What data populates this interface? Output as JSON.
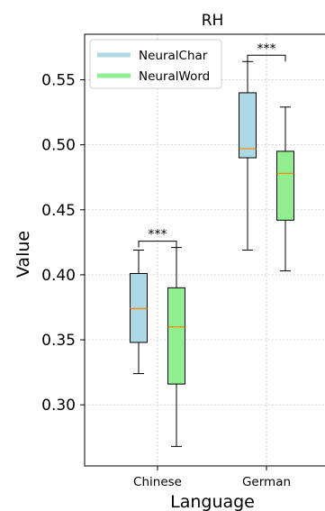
{
  "chart_data": {
    "type": "box",
    "title": "RH",
    "xlabel": "Language",
    "ylabel": "Value",
    "ylim": [
      0.253,
      0.585
    ],
    "yticks": [
      "0.30",
      "0.35",
      "0.40",
      "0.45",
      "0.50",
      "0.55"
    ],
    "ytick_values": [
      0.3,
      0.35,
      0.4,
      0.45,
      0.5,
      0.55
    ],
    "grid": true,
    "legend_position": "top-left",
    "categories": [
      "Chinese",
      "German"
    ],
    "series": [
      {
        "name": "NeuralChar",
        "color": "#add8e6",
        "boxes": [
          {
            "whisker_low": 0.324,
            "q1": 0.348,
            "median": 0.374,
            "q3": 0.401,
            "whisker_high": 0.419
          },
          {
            "whisker_low": 0.419,
            "q1": 0.49,
            "median": 0.497,
            "q3": 0.54,
            "whisker_high": 0.564
          }
        ]
      },
      {
        "name": "NeuralWord",
        "color": "#90ee90",
        "boxes": [
          {
            "whisker_low": 0.268,
            "q1": 0.316,
            "median": 0.36,
            "q3": 0.39,
            "whisker_high": 0.421
          },
          {
            "whisker_low": 0.403,
            "q1": 0.442,
            "median": 0.478,
            "q3": 0.495,
            "whisker_high": 0.529
          }
        ]
      }
    ],
    "median_color": "#ff8c00",
    "annotations": [
      {
        "category": "Chinese",
        "text": "***"
      },
      {
        "category": "German",
        "text": "***"
      }
    ]
  }
}
